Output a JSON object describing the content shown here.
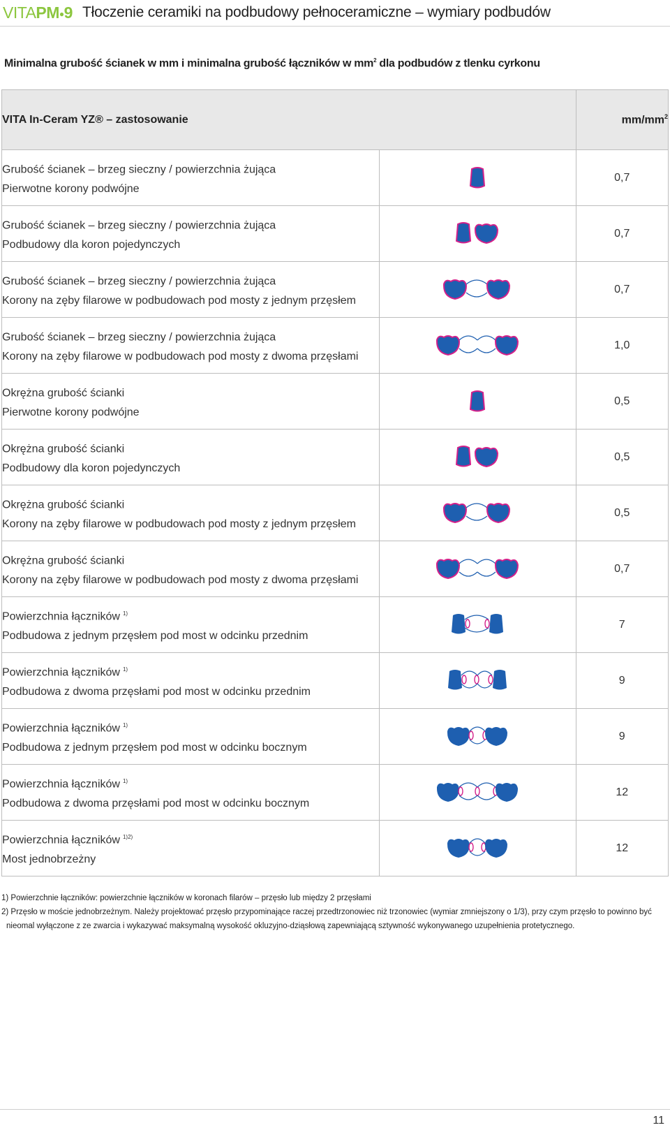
{
  "header": {
    "logo_vita": "VITA",
    "logo_pm": "PM",
    "logo_num": "9",
    "title": "Tłoczenie ceramiki na podbudowy pełnoceramiczne – wymiary podbudów"
  },
  "subtitle": {
    "text": "Minimalna grubość ścianek w mm i minimalna grubość łączników w mm",
    "sup": "2",
    "rest": " dla podbudów z tlenku cyrkonu"
  },
  "table": {
    "header_application": "VITA In-Ceram YZ® – zastosowanie",
    "header_unit": "mm/mm",
    "header_unit_sup": "2",
    "rows": [
      {
        "line1": "Grubość ścianek – brzeg sieczny / powierzchnia żująca",
        "sup": "",
        "line2": "Pierwotne korony podwójne",
        "value": "0,7",
        "icon": "single-crown-icon"
      },
      {
        "line1": "Grubość ścianek – brzeg sieczny / powierzchnia żująca",
        "sup": "",
        "line2": "Podbudowy dla koron pojedynczych",
        "value": "0,7",
        "icon": "two-crowns-icon"
      },
      {
        "line1": "Grubość ścianek – brzeg sieczny / powierzchnia żująca",
        "sup": "",
        "line2": "Korony na zęby filarowe w podbudowach pod mosty z jednym przęsłem",
        "value": "0,7",
        "icon": "bridge-one-pontic-icon"
      },
      {
        "line1": "Grubość ścianek – brzeg sieczny / powierzchnia żująca",
        "sup": "",
        "line2": "Korony na zęby filarowe w podbudowach pod mosty z dwoma przęsłami",
        "value": "1,0",
        "icon": "bridge-two-pontics-icon"
      },
      {
        "line1": "Okrężna grubość ścianki",
        "sup": "",
        "line2": "Pierwotne korony podwójne",
        "value": "0,5",
        "icon": "single-crown-icon"
      },
      {
        "line1": "Okrężna grubość ścianki",
        "sup": "",
        "line2": "Podbudowy dla koron pojedynczych",
        "value": "0,5",
        "icon": "two-crowns-icon"
      },
      {
        "line1": "Okrężna grubość ścianki",
        "sup": "",
        "line2": "Korony na zęby filarowe w podbudowach pod mosty z jednym przęsłem",
        "value": "0,5",
        "icon": "bridge-one-pontic-icon"
      },
      {
        "line1": "Okrężna grubość ścianki",
        "sup": "",
        "line2": "Korony na zęby filarowe w podbudowach pod mosty z dwoma przęsłami",
        "value": "0,7",
        "icon": "bridge-two-pontics-icon"
      },
      {
        "line1": "Powierzchnia łączników",
        "sup": "1)",
        "line2": "Podbudowa z jednym przęsłem pod most w odcinku przednim",
        "value": "7",
        "icon": "anterior-bridge-one-pontic-icon"
      },
      {
        "line1": "Powierzchnia łączników",
        "sup": "1)",
        "line2": "Podbudowa z dwoma przęsłami pod most w odcinku przednim",
        "value": "9",
        "icon": "anterior-bridge-two-pontics-icon"
      },
      {
        "line1": "Powierzchnia łączników",
        "sup": "1)",
        "line2": "Podbudowa z jednym przęsłem pod most w odcinku bocznym",
        "value": "9",
        "icon": "posterior-bridge-one-pontic-icon"
      },
      {
        "line1": "Powierzchnia łączników",
        "sup": "1)",
        "line2": "Podbudowa z dwoma przęsłami pod most w odcinku bocznym",
        "value": "12",
        "icon": "posterior-bridge-two-pontics-icon"
      },
      {
        "line1": "Powierzchnia łączników",
        "sup": "1)2)",
        "line2": "Most jednobrzeżny",
        "value": "12",
        "icon": "cantilever-bridge-icon"
      }
    ]
  },
  "notes": [
    "1) Powierzchnie łączników: powierzchnie łączników w koronach filarów – przęsło lub między 2 przęsłami",
    "2) Przęsło w moście jednobrzeżnym. Należy projektować przęsło przypominające raczej przedtrzonowiec niż trzonowiec (wymiar zmniejszony o 1/3), przy czym przęsło to powinno być nieomal wyłączone z ze zwarcia i wykazywać maksymalną wysokość okluzyjno-dziąsłową zapewniającą sztywność wykonywanego uzupełnienia protetycznego."
  ],
  "page_number": "11",
  "colors": {
    "logo_green": "#8cc63f",
    "tooth_blue": "#1e5fb0",
    "highlight_magenta": "#d4208a",
    "header_gray": "#e8e8e8"
  }
}
